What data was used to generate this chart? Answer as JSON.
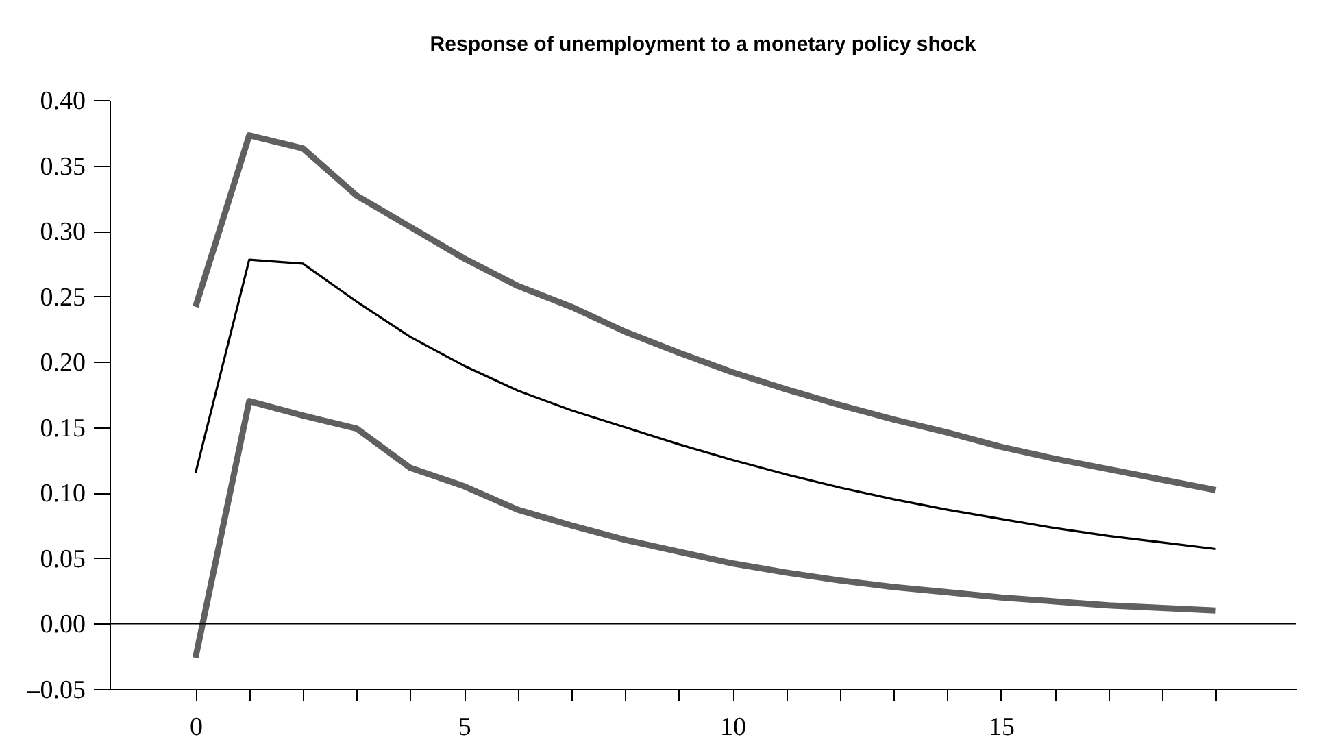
{
  "chart_data": {
    "type": "line",
    "title": "Response of unemployment to a monetary policy shock",
    "x": [
      0,
      1,
      2,
      3,
      4,
      5,
      6,
      7,
      8,
      9,
      10,
      11,
      12,
      13,
      14,
      15,
      16,
      17,
      18,
      19
    ],
    "series": [
      {
        "color": "#000000",
        "values": [
          0.115,
          0.278,
          0.275,
          0.246,
          0.219,
          0.197,
          0.178,
          0.163,
          0.15,
          0.137,
          0.125,
          0.114,
          0.104,
          0.095,
          0.087,
          0.08,
          0.073,
          0.067,
          0.062,
          0.057
        ]
      },
      {
        "color": "#606060",
        "values": [
          0.242,
          0.373,
          0.363,
          0.327,
          0.303,
          0.279,
          0.258,
          0.242,
          0.223,
          0.207,
          0.192,
          0.179,
          0.167,
          0.156,
          0.146,
          0.135,
          0.126,
          0.118,
          0.11,
          0.102
        ]
      },
      {
        "color": "#606060",
        "values": [
          -0.026,
          0.17,
          0.159,
          0.149,
          0.119,
          0.105,
          0.087,
          0.075,
          0.064,
          0.055,
          0.046,
          0.039,
          0.033,
          0.028,
          0.024,
          0.02,
          0.017,
          0.014,
          0.012,
          0.01
        ]
      }
    ],
    "xlim": [
      -1.6,
      20.5
    ],
    "xticks": [
      0,
      {
        "value": 1,
        "label": null
      },
      {
        "value": 2,
        "label": null
      },
      {
        "value": 3,
        "label": null
      },
      {
        "value": 4,
        "label": null
      },
      5,
      {
        "value": 6,
        "label": null
      },
      {
        "value": 7,
        "label": null
      },
      {
        "value": 8,
        "label": null
      },
      {
        "value": 9,
        "label": null
      },
      10,
      {
        "value": 11,
        "label": null
      },
      {
        "value": 12,
        "label": null
      },
      {
        "value": 13,
        "label": null
      },
      {
        "value": 14,
        "label": null
      },
      15,
      {
        "value": 16,
        "label": null
      },
      {
        "value": 17,
        "label": null
      },
      {
        "value": 18,
        "label": null
      },
      {
        "value": 19,
        "label": null
      }
    ],
    "ylim": [
      -0.05,
      0.4
    ],
    "yticks": [
      {
        "value": -0.05,
        "label": "–0.05"
      },
      {
        "value": 0,
        "label": "0.00"
      },
      {
        "value": 0.05,
        "label": "0.05"
      },
      {
        "value": 0.1,
        "label": "0.10"
      },
      {
        "value": 0.15,
        "label": "0.15"
      },
      {
        "value": 0.2,
        "label": "0.20"
      },
      {
        "value": 0.25,
        "label": "0.25"
      },
      {
        "value": 0.3,
        "label": "0.30"
      },
      {
        "value": 0.35,
        "label": "0.35"
      },
      {
        "value": 0.4,
        "label": "0.40"
      }
    ],
    "ref_lines": [
      {
        "axis": "y",
        "value": 0,
        "color": "#000000"
      }
    ],
    "grid": false,
    "marker": "none",
    "line_style": "solid"
  }
}
